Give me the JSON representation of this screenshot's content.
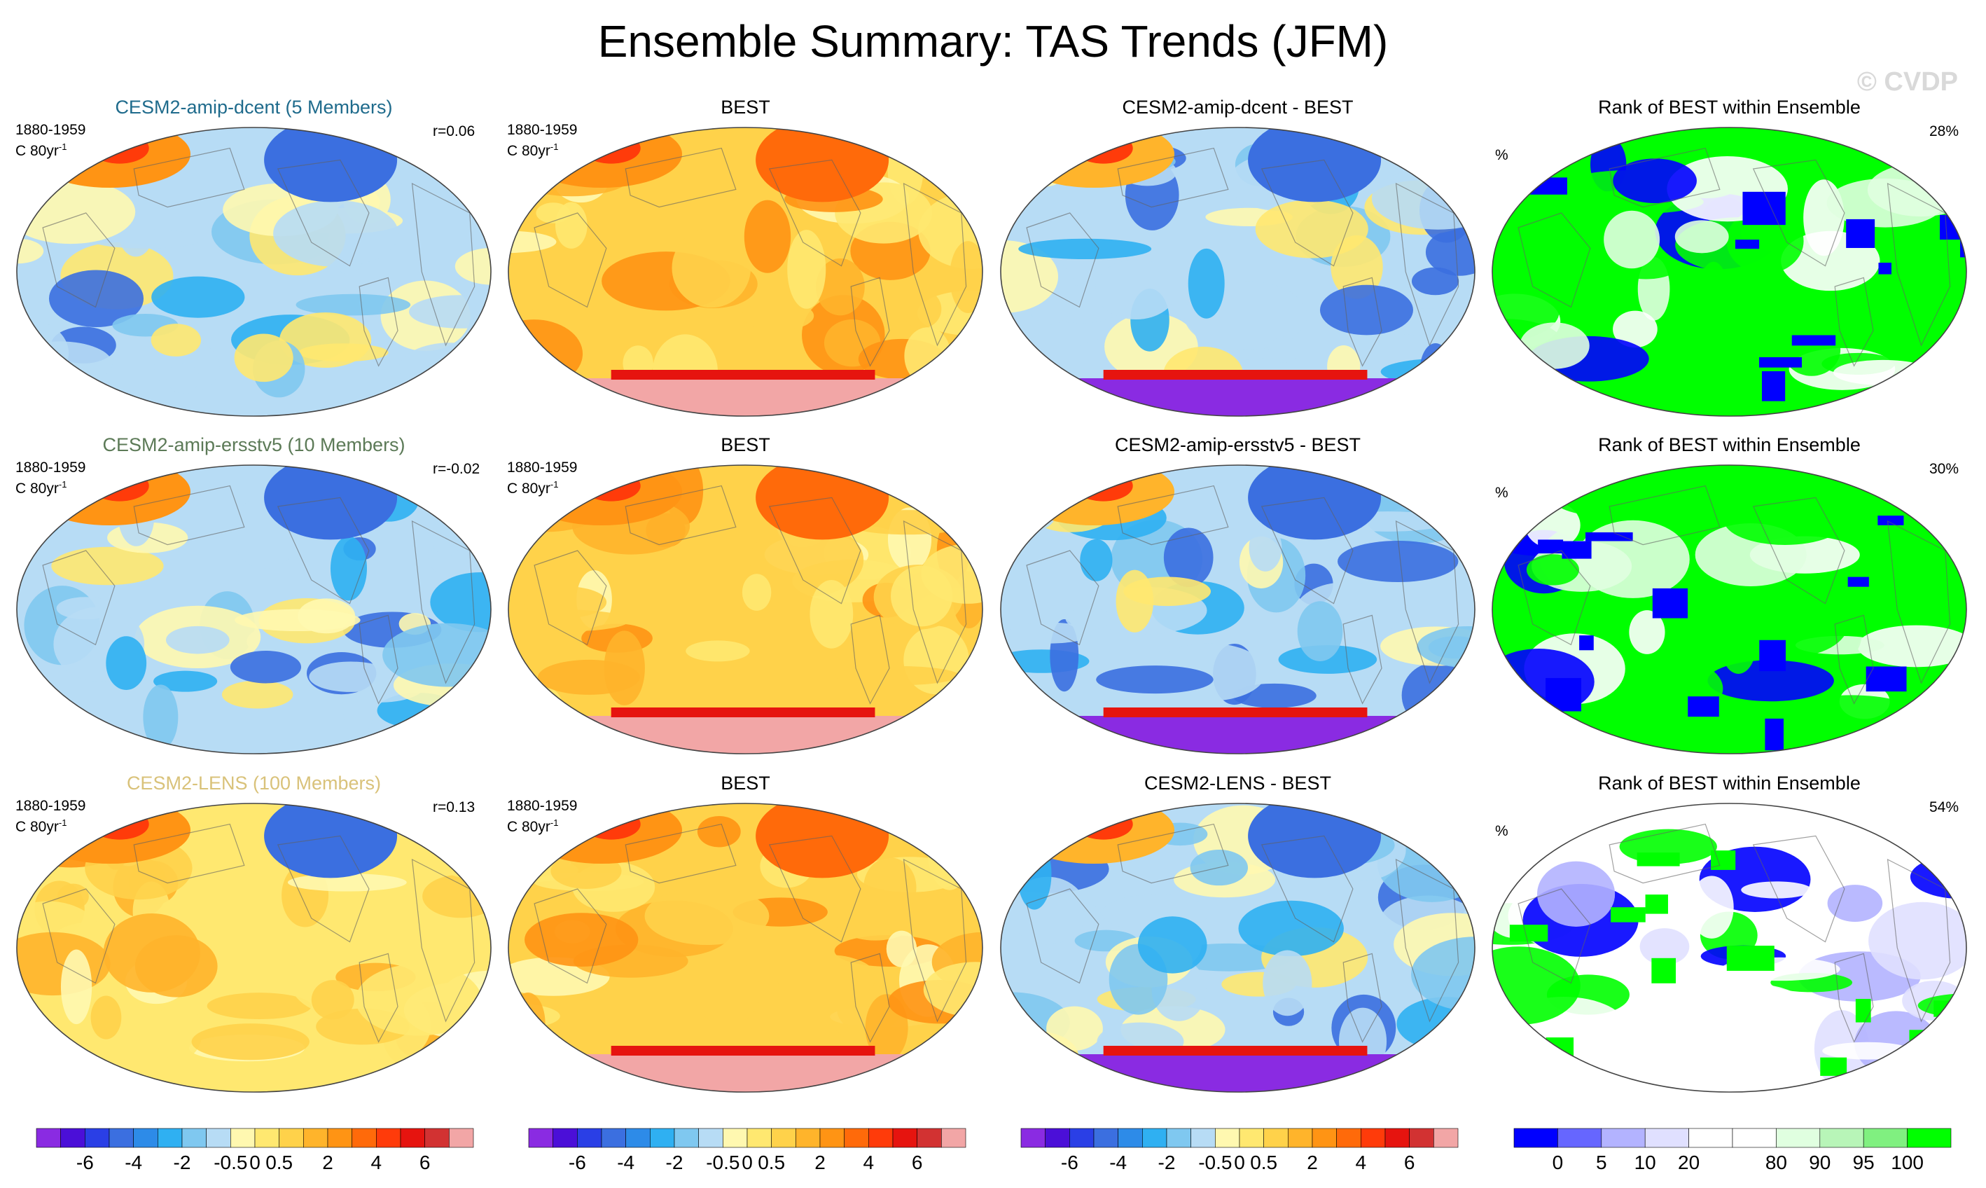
{
  "title": "Ensemble Summary: TAS Trends (JFM)",
  "watermark": "© CVDP",
  "period": "1880-1959",
  "units_prefix": "C 80yr",
  "units_sup": "-1",
  "rank_units": "%",
  "colors": {
    "member_title_1": "#1f6b8c",
    "member_title_2": "#5c7a57",
    "member_title_3": "#d9c27a",
    "rank_land_outline": "#606060"
  },
  "chart_data": {
    "type": "heatmap",
    "rows": [
      {
        "ensemble_title": "CESM2-amip-dcent (5 Members)",
        "ensemble_r": "r=0.06",
        "obs_title": "BEST",
        "diff_title": "CESM2-amip-dcent - BEST",
        "rank_title": "Rank of BEST within Ensemble",
        "rank_pct": "28%",
        "regime": {
          "ens": "cool",
          "diff": "cool",
          "rank": "green"
        }
      },
      {
        "ensemble_title": "CESM2-amip-ersstv5 (10 Members)",
        "ensemble_r": "r=-0.02",
        "obs_title": "BEST",
        "diff_title": "CESM2-amip-ersstv5 - BEST",
        "rank_title": "Rank of BEST within Ensemble",
        "rank_pct": "30%",
        "regime": {
          "ens": "cool",
          "diff": "cool",
          "rank": "green"
        }
      },
      {
        "ensemble_title": "CESM2-LENS (100 Members)",
        "ensemble_r": "r=0.13",
        "obs_title": "BEST",
        "diff_title": "CESM2-LENS - BEST",
        "rank_title": "Rank of BEST within Ensemble",
        "rank_pct": "54%",
        "regime": {
          "ens": "warm",
          "diff": "cool",
          "rank": "white"
        }
      }
    ],
    "trend_colorbar": {
      "colors": [
        "#8a2be2",
        "#4b0fd8",
        "#2a3fe6",
        "#3b6fe0",
        "#2d8be8",
        "#2fb0f2",
        "#7fc8f0",
        "#b7dcf5",
        "#fff8b0",
        "#ffe870",
        "#ffd24a",
        "#ffb42b",
        "#ff9414",
        "#ff6a0a",
        "#ff3b0a",
        "#e6140f",
        "#d23232",
        "#f2a6a6"
      ],
      "labels": [
        "-6",
        "-4",
        "-2",
        "-0.5",
        "0",
        "0.5",
        "2",
        "4",
        "6"
      ],
      "label_after_box": [
        2,
        4,
        6,
        8,
        9,
        10,
        12,
        14,
        16
      ]
    },
    "rank_colorbar": {
      "colors": [
        "#0000ff",
        "#6666ff",
        "#b3b3ff",
        "#e0e0ff",
        "#ffffff",
        "#ffffff",
        "#e0ffe0",
        "#b8f5b8",
        "#80f080",
        "#00ff00"
      ],
      "labels": [
        "0",
        "5",
        "10",
        "20",
        "80",
        "90",
        "95",
        "100"
      ],
      "label_after_box": [
        1,
        2,
        3,
        4,
        6,
        7,
        8,
        9
      ]
    }
  }
}
